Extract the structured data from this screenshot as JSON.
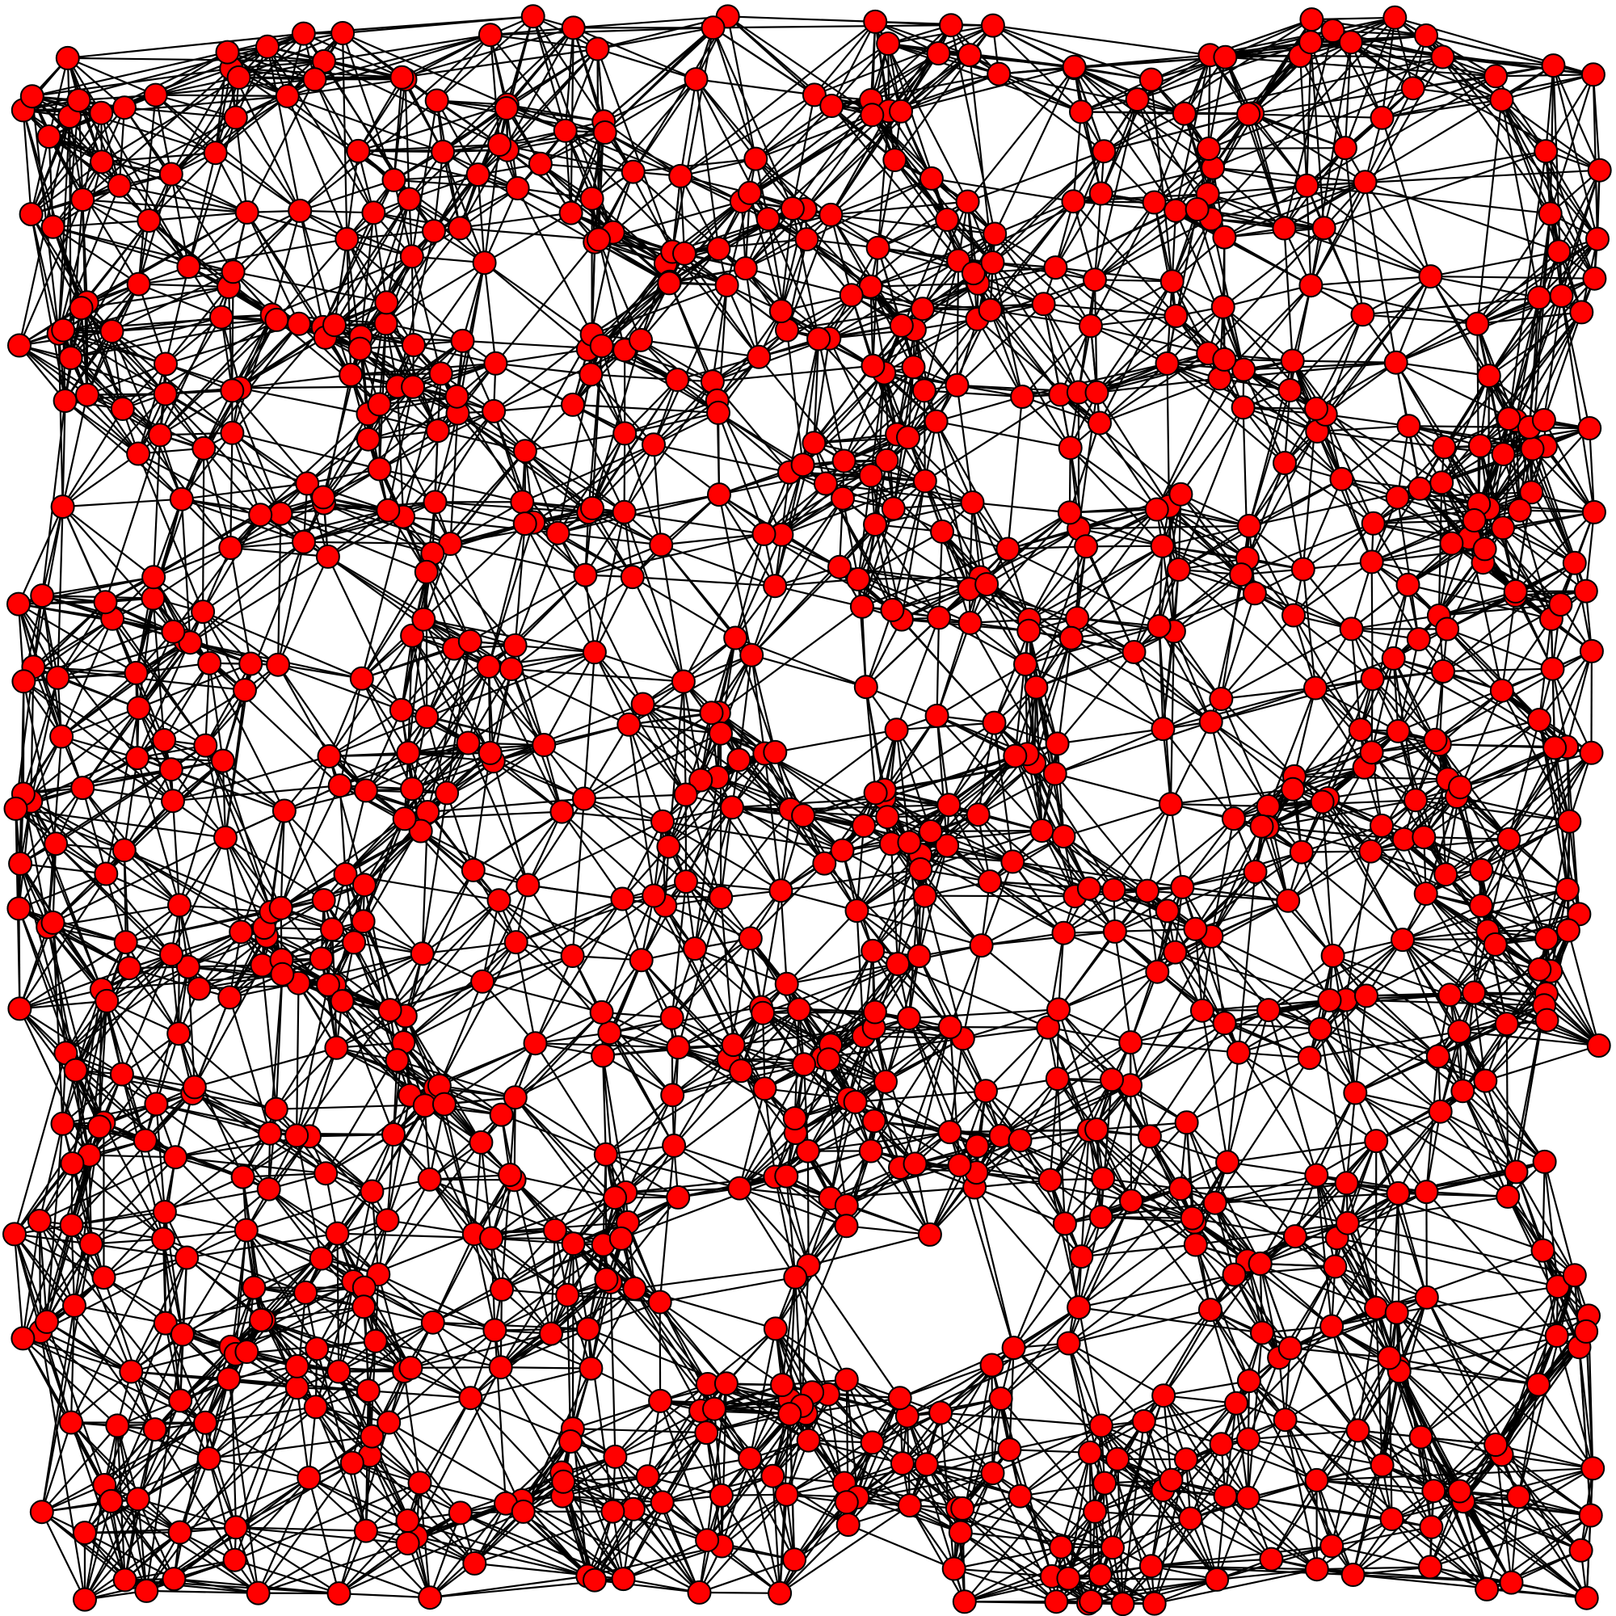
{
  "diagram": {
    "type": "random-geometric-graph",
    "node_fill": "#ff0000",
    "node_stroke": "#000000",
    "edge_color": "#000000",
    "background": "#ffffff",
    "nodes_note_count": 1000,
    "seed": 1597
  }
}
